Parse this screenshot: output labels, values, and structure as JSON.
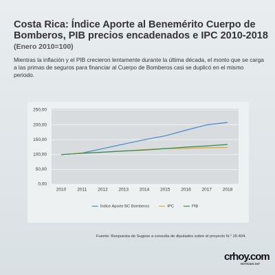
{
  "chart_data": {
    "type": "line",
    "title": "Costa Rica: Índice Aporte al Benemérito Cuerpo de Bomberos, PIB precios encadenados e IPC 2010-2018",
    "subtitle": "(Enero 2010=100)",
    "description": "Mientras la inflación y el PIB crecieron lentamente durante la última década, el monto que se carga a las primas de seguros para financiar al Cuerpo de Bomberos casi se duplicó en el mismo periodo.",
    "source": "Fuente: Respuesta de Sugese a consulta de diputados sobre el proyecto N.° 20.404.",
    "categories": [
      "2010",
      "2011",
      "2012",
      "2013",
      "2014",
      "2015",
      "2016",
      "2017",
      "2018"
    ],
    "series": [
      {
        "name": "Índice Aporte BC Bomberos",
        "color": "#3f87c8",
        "values": [
          100,
          105,
          120,
          135,
          150,
          163,
          182,
          200,
          208
        ]
      },
      {
        "name": "IPC",
        "color": "#e6a12e",
        "values": [
          100,
          105,
          108,
          112,
          117,
          120,
          121,
          123,
          124
        ]
      },
      {
        "name": "PIB",
        "color": "#2e8b57",
        "values": [
          100,
          104,
          108,
          112,
          115,
          120,
          125,
          129,
          134
        ]
      }
    ],
    "ylim": [
      0,
      250
    ],
    "yticks": [
      {
        "value": 0,
        "label": "0,00"
      },
      {
        "value": 50,
        "label": "50,00"
      },
      {
        "value": 100,
        "label": "100,00"
      },
      {
        "value": 150,
        "label": "150,00"
      },
      {
        "value": 200,
        "label": "200,00"
      },
      {
        "value": 250,
        "label": "250,00"
      }
    ],
    "grid": true,
    "legend": "bottom"
  },
  "logo": {
    "name": "crhoy.com",
    "tagline": "NOTICIAS 24/7"
  }
}
